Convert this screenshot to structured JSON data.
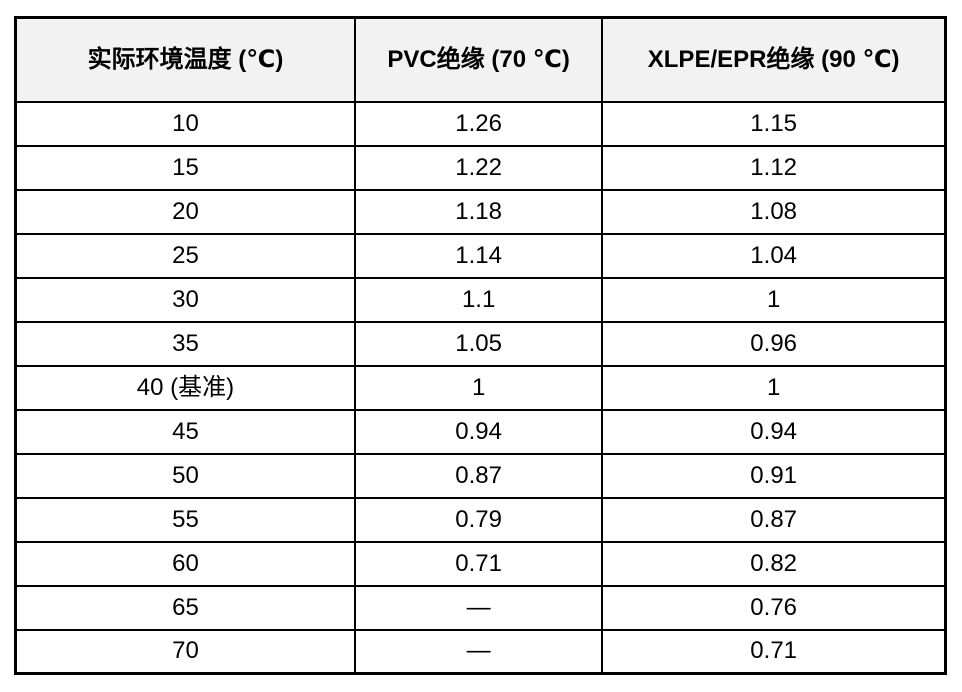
{
  "table": {
    "headers": [
      "实际环境温度 (℃)",
      "PVC绝缘 (70 ℃)",
      "XLPE/EPR绝缘 (90 ℃)"
    ],
    "rows": [
      [
        "10",
        "1.26",
        "1.15"
      ],
      [
        "15",
        "1.22",
        "1.12"
      ],
      [
        "20",
        "1.18",
        "1.08"
      ],
      [
        "25",
        "1.14",
        "1.04"
      ],
      [
        "30",
        "1.1",
        "1"
      ],
      [
        "35",
        "1.05",
        "0.96"
      ],
      [
        "40 (基准)",
        "1",
        "1"
      ],
      [
        "45",
        "0.94",
        "0.94"
      ],
      [
        "50",
        "0.87",
        "0.91"
      ],
      [
        "55",
        "0.79",
        "0.87"
      ],
      [
        "60",
        "0.71",
        "0.82"
      ],
      [
        "65",
        "—",
        "0.76"
      ],
      [
        "70",
        "—",
        "0.71"
      ]
    ]
  },
  "colors": {
    "border": "#000000",
    "header_bg": "#f2f2f2",
    "cell_bg": "#ffffff",
    "text": "#000000"
  }
}
